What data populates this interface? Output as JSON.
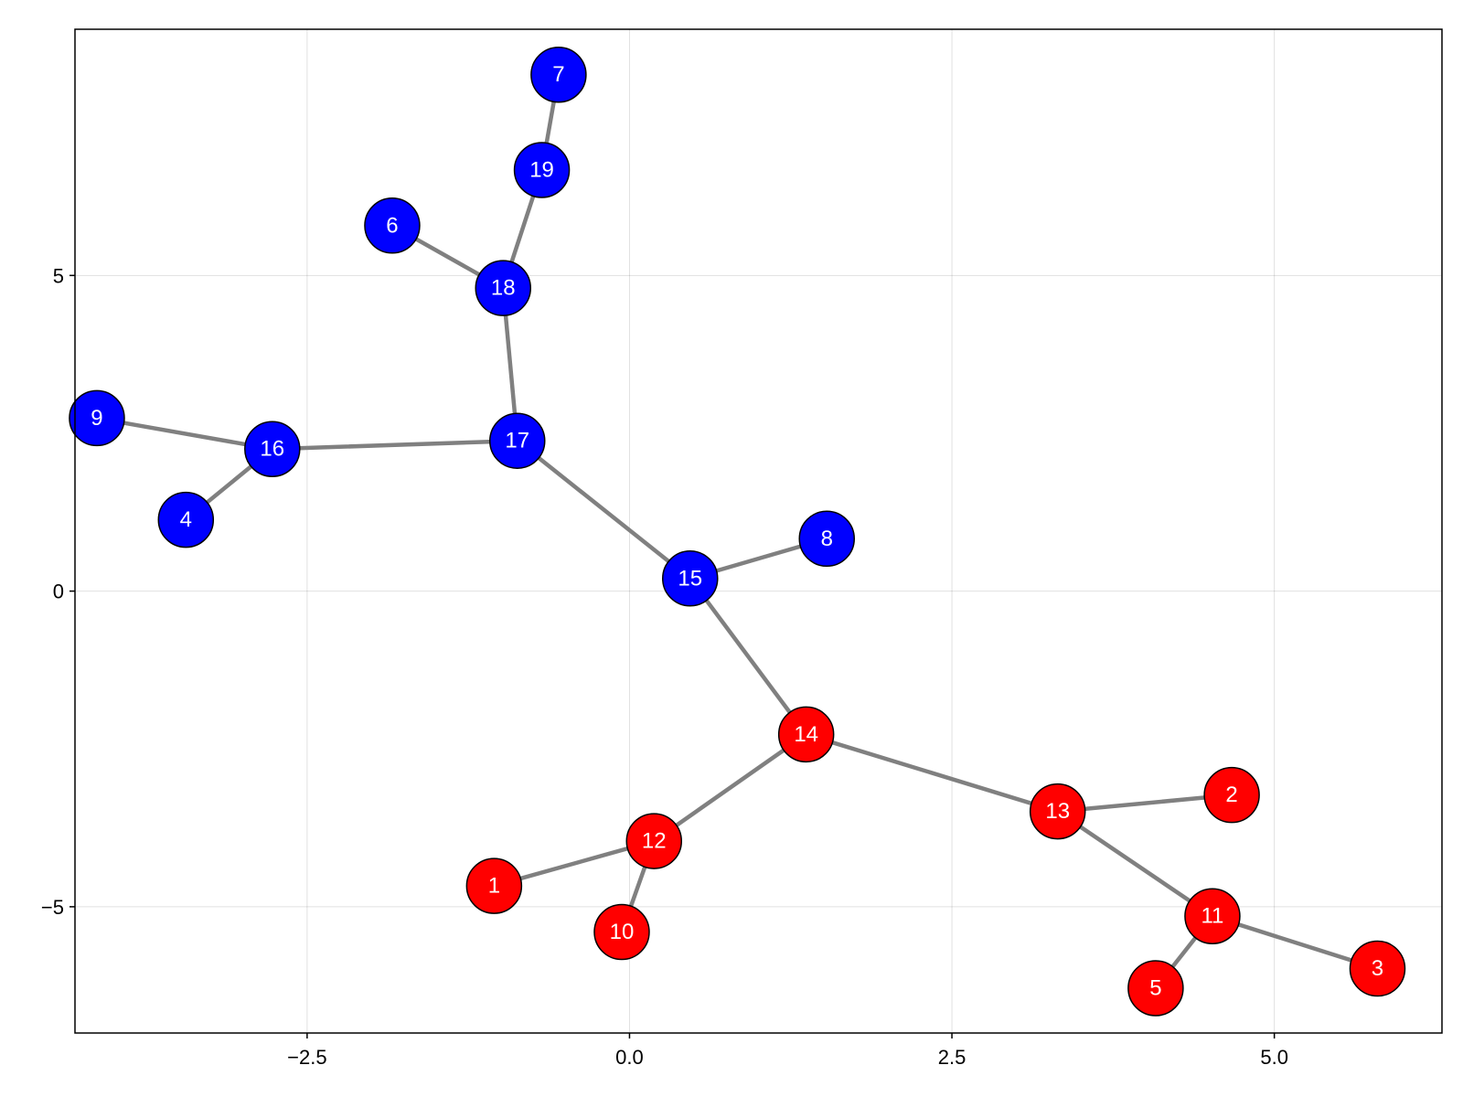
{
  "chart_data": {
    "type": "graph",
    "title": "",
    "xlabel": "",
    "ylabel": "",
    "xlim": [
      -4.3,
      6.3
    ],
    "ylim": [
      -7.0,
      8.9
    ],
    "grid": true,
    "x_ticks": [
      {
        "value": -2.5,
        "label": "−2.5"
      },
      {
        "value": 0.0,
        "label": "0.0"
      },
      {
        "value": 2.5,
        "label": "2.5"
      },
      {
        "value": 5.0,
        "label": "5.0"
      }
    ],
    "y_ticks": [
      {
        "value": 5,
        "label": "5"
      },
      {
        "value": 0,
        "label": "0"
      },
      {
        "value": -5,
        "label": "−5"
      }
    ],
    "node_colors": {
      "group_blue": "#0000ff",
      "group_red": "#ff0000"
    },
    "edge_color": "#808080",
    "nodes": [
      {
        "id": "1",
        "x": -1.05,
        "y": -4.67,
        "group": "group_red"
      },
      {
        "id": "2",
        "x": 4.67,
        "y": -3.23,
        "group": "group_red"
      },
      {
        "id": "3",
        "x": 5.8,
        "y": -5.98,
        "group": "group_red"
      },
      {
        "id": "4",
        "x": -3.44,
        "y": 1.13,
        "group": "group_blue"
      },
      {
        "id": "5",
        "x": 4.08,
        "y": -6.29,
        "group": "group_red"
      },
      {
        "id": "6",
        "x": -1.84,
        "y": 5.79,
        "group": "group_blue"
      },
      {
        "id": "7",
        "x": -0.55,
        "y": 8.18,
        "group": "group_blue"
      },
      {
        "id": "8",
        "x": 1.53,
        "y": 0.83,
        "group": "group_blue"
      },
      {
        "id": "9",
        "x": -4.13,
        "y": 2.74,
        "group": "group_blue"
      },
      {
        "id": "10",
        "x": -0.06,
        "y": -5.4,
        "group": "group_red"
      },
      {
        "id": "11",
        "x": 4.52,
        "y": -5.15,
        "group": "group_red"
      },
      {
        "id": "12",
        "x": 0.19,
        "y": -3.96,
        "group": "group_red"
      },
      {
        "id": "13",
        "x": 3.32,
        "y": -3.49,
        "group": "group_red"
      },
      {
        "id": "14",
        "x": 1.37,
        "y": -2.27,
        "group": "group_red"
      },
      {
        "id": "15",
        "x": 0.47,
        "y": 0.2,
        "group": "group_blue"
      },
      {
        "id": "16",
        "x": -2.77,
        "y": 2.25,
        "group": "group_blue"
      },
      {
        "id": "17",
        "x": -0.87,
        "y": 2.38,
        "group": "group_blue"
      },
      {
        "id": "18",
        "x": -0.98,
        "y": 4.8,
        "group": "group_blue"
      },
      {
        "id": "19",
        "x": -0.68,
        "y": 6.67,
        "group": "group_blue"
      }
    ],
    "edges": [
      [
        "7",
        "19"
      ],
      [
        "19",
        "18"
      ],
      [
        "6",
        "18"
      ],
      [
        "18",
        "17"
      ],
      [
        "9",
        "16"
      ],
      [
        "4",
        "16"
      ],
      [
        "16",
        "17"
      ],
      [
        "17",
        "15"
      ],
      [
        "15",
        "8"
      ],
      [
        "15",
        "14"
      ],
      [
        "14",
        "12"
      ],
      [
        "12",
        "1"
      ],
      [
        "12",
        "10"
      ],
      [
        "14",
        "13"
      ],
      [
        "13",
        "2"
      ],
      [
        "13",
        "11"
      ],
      [
        "11",
        "5"
      ],
      [
        "11",
        "3"
      ]
    ]
  }
}
